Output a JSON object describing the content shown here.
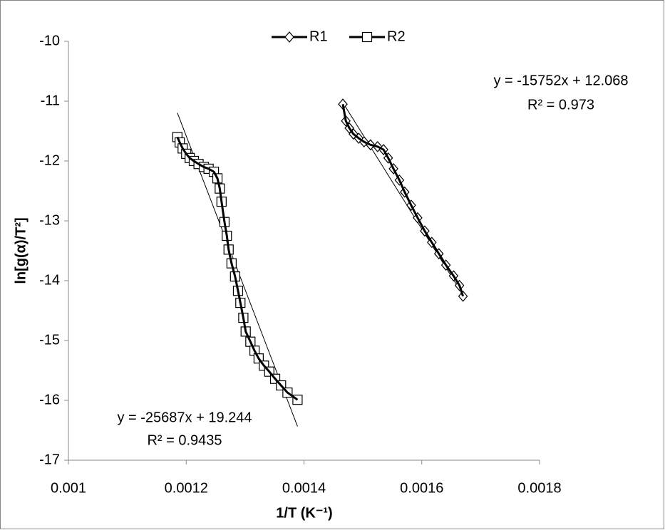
{
  "chart_data": {
    "type": "line",
    "xlabel": "1/T (K⁻¹)",
    "ylabel": "ln[g(α)/T²]",
    "xlim": [
      0.001,
      0.0018
    ],
    "xticks": [
      0.001,
      0.0012,
      0.0014,
      0.0016,
      0.0018
    ],
    "ylim": [
      -17,
      -10
    ],
    "yticks": [
      -10,
      -11,
      -12,
      -13,
      -14,
      -15,
      -16,
      -17
    ],
    "grid": false,
    "legend": "top",
    "series": [
      {
        "name": "R1",
        "color": "#000000",
        "marker": "diamond",
        "x": [
          0.001466,
          0.001471,
          0.001477,
          0.001484,
          0.001493,
          0.001502,
          0.001513,
          0.001525,
          0.001535,
          0.001543,
          0.001552,
          0.001562,
          0.001571,
          0.001582,
          0.001593,
          0.001605,
          0.001617,
          0.001629,
          0.001641,
          0.001654,
          0.001664,
          0.00167
        ],
        "values": [
          -11.05,
          -11.33,
          -11.45,
          -11.55,
          -11.62,
          -11.68,
          -11.73,
          -11.76,
          -11.81,
          -11.95,
          -12.13,
          -12.32,
          -12.52,
          -12.74,
          -12.95,
          -13.17,
          -13.36,
          -13.55,
          -13.74,
          -13.92,
          -14.08,
          -14.26
        ],
        "trendline": {
          "slope": -15752,
          "intercept": 12.068,
          "label": "y = -15752x + 12.068",
          "r2_label": "R² = 0.973"
        }
      },
      {
        "name": "R2",
        "color": "#000000",
        "marker": "square",
        "x": [
          0.001185,
          0.001189,
          0.001194,
          0.0012,
          0.001206,
          0.001213,
          0.001221,
          0.00123,
          0.001238,
          0.001247,
          0.001253,
          0.001257,
          0.00126,
          0.001265,
          0.001269,
          0.001272,
          0.001277,
          0.001283,
          0.001288,
          0.001292,
          0.001297,
          0.001301,
          0.001309,
          0.001316,
          0.001323,
          0.001332,
          0.001341,
          0.001351,
          0.001361,
          0.001372,
          0.001389
        ],
        "values": [
          -11.6,
          -11.69,
          -11.79,
          -11.88,
          -11.95,
          -12.0,
          -12.05,
          -12.1,
          -12.13,
          -12.18,
          -12.29,
          -12.46,
          -12.68,
          -13.02,
          -13.25,
          -13.48,
          -13.71,
          -13.93,
          -14.17,
          -14.37,
          -14.62,
          -14.85,
          -15.02,
          -15.17,
          -15.3,
          -15.42,
          -15.52,
          -15.64,
          -15.75,
          -15.87,
          -15.99
        ],
        "trendline": {
          "slope": -25687,
          "intercept": 19.244,
          "label": "y = -25687x + 19.244",
          "r2_label": "R² = 0.9435"
        }
      }
    ]
  }
}
